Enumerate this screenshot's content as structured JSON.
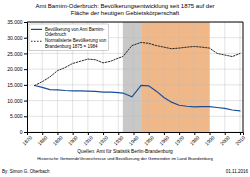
{
  "chart_data": {
    "type": "line",
    "title": "Amt Barnim-Oderbruch: Bevölkerungsentwicklung seit 1875 auf der\nFläche der heutigen Gebietskörperschaft",
    "annotations": [
      "Quellen: Amt für Statistik Berlin-Brandenburg",
      "Historische GemeindeVerzeichnisse und Bevölkerung der Gemeinden im Land Brandenburg",
      "By: Simon G. Oberbach",
      "01.11.2016"
    ],
    "x": [
      1875,
      1880,
      1885,
      1890,
      1895,
      1900,
      1905,
      1910,
      1915,
      1920,
      1925,
      1930,
      1933,
      1939,
      1945,
      1950,
      1955,
      1960,
      1965,
      1970,
      1975,
      1980,
      1985,
      1990,
      1995,
      2000,
      2005,
      2010
    ],
    "series": [
      {
        "name": "Bevölkerung von Amt Barnim-\nOderbruch",
        "color": "#1a4d99",
        "line_style": "solid",
        "values": [
          14800,
          14200,
          13500,
          13400,
          13200,
          13100,
          13100,
          13000,
          12900,
          12700,
          12700,
          12500,
          12400,
          11200,
          14800,
          14700,
          13000,
          11000,
          9500,
          8500,
          8200,
          8000,
          8100,
          8100,
          7800,
          7500,
          7000,
          6700
        ]
      },
      {
        "name": "Normalisierte Bevölkerung von\nBrandenburg 1875 = 1984",
        "color": "#111111",
        "line_style": "dotted",
        "values": [
          14800,
          16000,
          17500,
          19500,
          20500,
          21800,
          22500,
          23200,
          23000,
          22000,
          22500,
          23500,
          24000,
          27500,
          28500,
          28200,
          27500,
          27000,
          26500,
          26700,
          27000,
          27200,
          27000,
          26700,
          25000,
          24500,
          24000,
          25000
        ]
      }
    ],
    "spans": [
      {
        "start": 1933,
        "end": 1945,
        "color": "#c8c8c8"
      },
      {
        "start": 1945,
        "end": 1990,
        "color": "#f0b888"
      }
    ],
    "xlim": [
      1870,
      2012
    ],
    "xticks": [
      1870,
      1880,
      1890,
      1900,
      1910,
      1920,
      1930,
      1940,
      1950,
      1960,
      1970,
      1980,
      1990,
      2000,
      2010
    ],
    "ylim": [
      0,
      35000
    ],
    "yticks": [
      0,
      {
        "value": 5000,
        "label": "5.000"
      },
      {
        "value": 10000,
        "label": "10.000"
      },
      {
        "value": 15000,
        "label": "15.000"
      },
      {
        "value": 20000,
        "label": "20.000"
      },
      {
        "value": 25000,
        "label": "25.000"
      },
      {
        "value": 30000,
        "label": "30.000"
      },
      {
        "value": 35000,
        "label": "35.000"
      }
    ],
    "grid": true,
    "legend": "upper left"
  }
}
